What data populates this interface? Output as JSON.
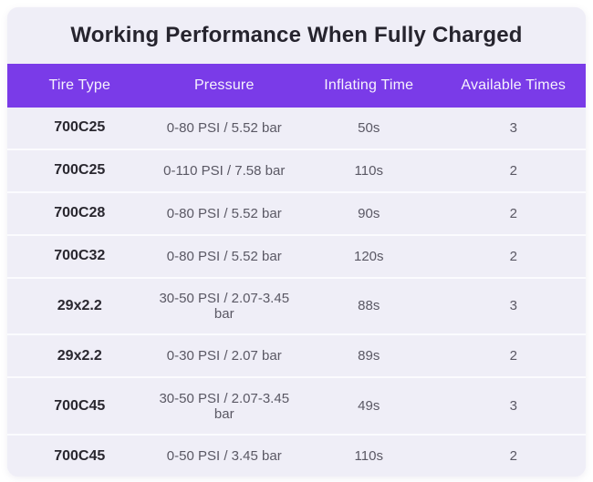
{
  "colors": {
    "accent_purple": "#7a3be8",
    "card_background": "#efeef7",
    "row_separator": "#fbfbfe",
    "title_text": "#26242e",
    "header_text": "#f6f2fd",
    "tire_text": "#29272f",
    "cell_text": "#5a5864",
    "page_background": "#ffffff"
  },
  "chart_data": {
    "type": "table",
    "title": "Working Performance When Fully Charged",
    "columns": [
      "Tire Type",
      "Pressure",
      "Inflating Time",
      "Available Times"
    ],
    "rows": [
      [
        "700C25",
        "0-80 PSI / 5.52 bar",
        "50s",
        "3"
      ],
      [
        "700C25",
        "0-110 PSI / 7.58 bar",
        "110s",
        "2"
      ],
      [
        "700C28",
        "0-80 PSI / 5.52 bar",
        "90s",
        "2"
      ],
      [
        "700C32",
        "0-80 PSI / 5.52 bar",
        "120s",
        "2"
      ],
      [
        "29x2.2",
        "30-50 PSI / 2.07-3.45 bar",
        "88s",
        "3"
      ],
      [
        "29x2.2",
        "0-30 PSI / 2.07 bar",
        "89s",
        "2"
      ],
      [
        "700C45",
        "30-50 PSI / 2.07-3.45 bar",
        "49s",
        "3"
      ],
      [
        "700C45",
        "0-50 PSI / 3.45 bar",
        "110s",
        "2"
      ]
    ]
  }
}
